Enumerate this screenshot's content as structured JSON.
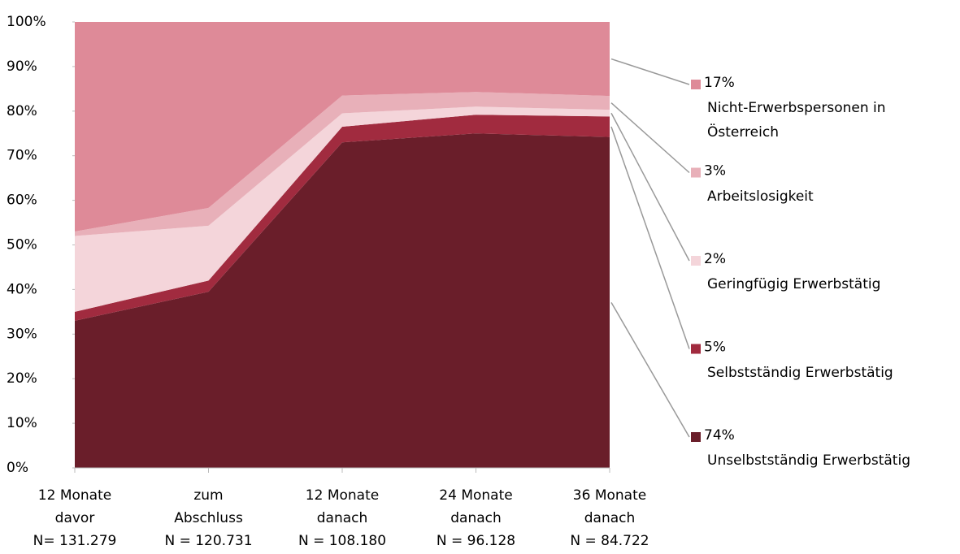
{
  "chart_data": {
    "type": "stacked_area",
    "categories": [
      [
        "12 Monate",
        "davor",
        "N= 131.279"
      ],
      [
        "zum",
        "Abschluss",
        "N = 120.731"
      ],
      [
        "12 Monate",
        "danach",
        "N = 108.180"
      ],
      [
        "24 Monate",
        "danach",
        "N = 96.128"
      ],
      [
        "36 Monate",
        "danach",
        "N = 84.722"
      ]
    ],
    "series": [
      {
        "name": "Unselbstständig Erwerbstätig",
        "color": "#6a1e2a",
        "values": [
          33,
          39.5,
          73,
          75,
          74.2
        ],
        "value_labels": [
          null,
          null,
          null,
          null,
          "74%"
        ]
      },
      {
        "name": "Selbstständig Erwerbstätig",
        "color": "#a12b3f",
        "values": [
          2,
          2.5,
          3.5,
          4.2,
          4.6
        ],
        "value_labels": [
          null,
          null,
          null,
          null,
          "5%"
        ]
      },
      {
        "name": "Geringfügig Erwerbstätig",
        "color": "#f4d5da",
        "values": [
          17,
          12.3,
          3,
          1.8,
          1.5
        ],
        "value_labels": [
          null,
          null,
          null,
          null,
          "2%"
        ]
      },
      {
        "name": "Arbeitslosigkeit",
        "color": "#e8b0b9",
        "values": [
          1,
          4,
          4,
          3.3,
          3.1
        ],
        "value_labels": [
          null,
          null,
          null,
          null,
          "3%"
        ]
      },
      {
        "name": "Nicht-Erwerbspersonen in Österreich",
        "color": "#de8a98",
        "values": [
          47,
          41.7,
          16.5,
          15.7,
          16.6
        ],
        "value_labels": [
          null,
          null,
          null,
          null,
          "17%"
        ]
      }
    ],
    "ylim": [
      0,
      100
    ],
    "yticks": [
      {
        "value": 0,
        "label": "0%"
      },
      {
        "value": 10,
        "label": "10%"
      },
      {
        "value": 20,
        "label": "20%"
      },
      {
        "value": 30,
        "label": "30%"
      },
      {
        "value": 40,
        "label": "40%"
      },
      {
        "value": 50,
        "label": "50%"
      },
      {
        "value": 60,
        "label": "60%"
      },
      {
        "value": 70,
        "label": "70%"
      },
      {
        "value": 80,
        "label": "80%"
      },
      {
        "value": 90,
        "label": "90%"
      },
      {
        "value": 100,
        "label": "100%"
      }
    ],
    "legend": "right"
  }
}
